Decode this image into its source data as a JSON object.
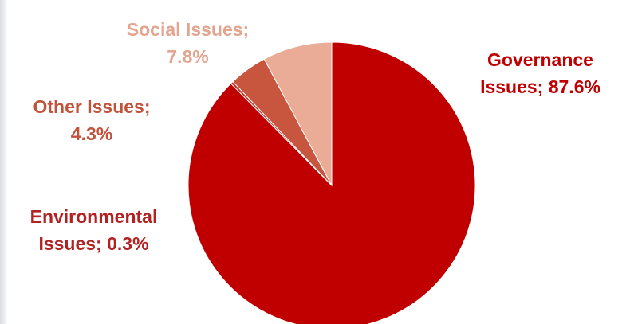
{
  "chart_data": {
    "type": "pie",
    "title": "",
    "slices": [
      {
        "label": "Governance Issues",
        "value": 87.6,
        "label_lines": [
          "Governance",
          "Issues; 87.6%"
        ],
        "color": "#c00000",
        "label_color": "#c00000"
      },
      {
        "label": "Environmental Issues",
        "value": 0.3,
        "label_lines": [
          "Environmental",
          "Issues; 0.3%"
        ],
        "color": "#c0392b",
        "label_color": "#b22222"
      },
      {
        "label": "Other Issues",
        "value": 4.3,
        "label_lines": [
          "Other Issues;",
          "4.3%"
        ],
        "color": "#c8553d",
        "label_color": "#c0533a"
      },
      {
        "label": "Social Issues",
        "value": 7.8,
        "label_lines": [
          "Social Issues;",
          "7.8%"
        ],
        "color": "#eaac96",
        "label_color": "#e3a58f"
      }
    ],
    "start_angle": "12 o'clock",
    "direction": "clockwise",
    "legend": "none"
  }
}
